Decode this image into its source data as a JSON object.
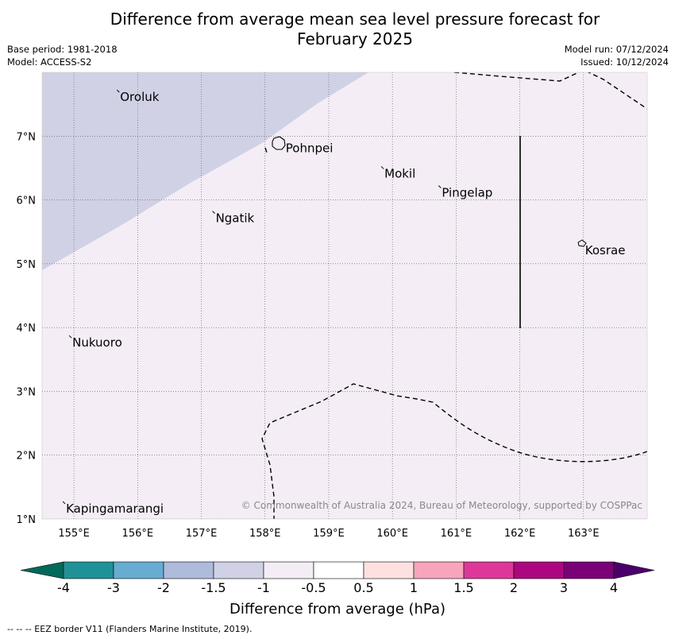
{
  "title_line1": "Difference from average mean sea level pressure forecast for",
  "title_line2": "February 2025",
  "base_period": "Base period: 1981-2018",
  "model": "Model: ACCESS-S2",
  "model_run": "Model run: 07/12/2024",
  "issued": "Issued: 10/12/2024",
  "copyright": "© Commonwealth of Australia 2024, Bureau of Meteorology, supported by COSPPac",
  "footer": "--  --  -- EEZ border V11 (Flanders Marine Institute, 2019).",
  "colorbar": {
    "label": "Difference from average (hPa)",
    "ticks": [
      "-4",
      "-3",
      "-2",
      "-1.5",
      "-1",
      "-0.5",
      "0.5",
      "1",
      "1.5",
      "2",
      "3",
      "4"
    ],
    "low_color": "#00695c",
    "colors": [
      "#1f9297",
      "#69acd1",
      "#aebbdb",
      "#d0d1e5",
      "#f4edf6",
      "#ffffff",
      "#fde0e0",
      "#f8a4bd",
      "#df3699",
      "#ac0681",
      "#7a0177"
    ],
    "high_color": "#49006a"
  },
  "map": {
    "lon_labels": [
      "155°E",
      "156°E",
      "157°E",
      "158°E",
      "159°E",
      "160°E",
      "161°E",
      "162°E",
      "163°E"
    ],
    "lat_labels": [
      "7°N",
      "6°N",
      "5°N",
      "4°N",
      "3°N",
      "2°N",
      "1°N"
    ],
    "lon_range": [
      154.5,
      164.0
    ],
    "lat_range": [
      1.0,
      8.0
    ],
    "background_color": "#f4edf6",
    "shade_color": "#d0d1e5",
    "places": [
      {
        "name": "Oroluk",
        "lon": 155.7,
        "lat": 7.7
      },
      {
        "name": "Pohnpei",
        "lon": 158.3,
        "lat": 6.9
      },
      {
        "name": "Mokil",
        "lon": 159.85,
        "lat": 6.5
      },
      {
        "name": "Pingelap",
        "lon": 160.75,
        "lat": 6.2
      },
      {
        "name": "Ngatik",
        "lon": 157.2,
        "lat": 5.8
      },
      {
        "name": "Kosrae",
        "lon": 163.0,
        "lat": 5.3
      },
      {
        "name": "Nukuoro",
        "lon": 154.95,
        "lat": 3.85
      },
      {
        "name": "Kapingamarangi",
        "lon": 154.85,
        "lat": 1.25
      }
    ]
  }
}
